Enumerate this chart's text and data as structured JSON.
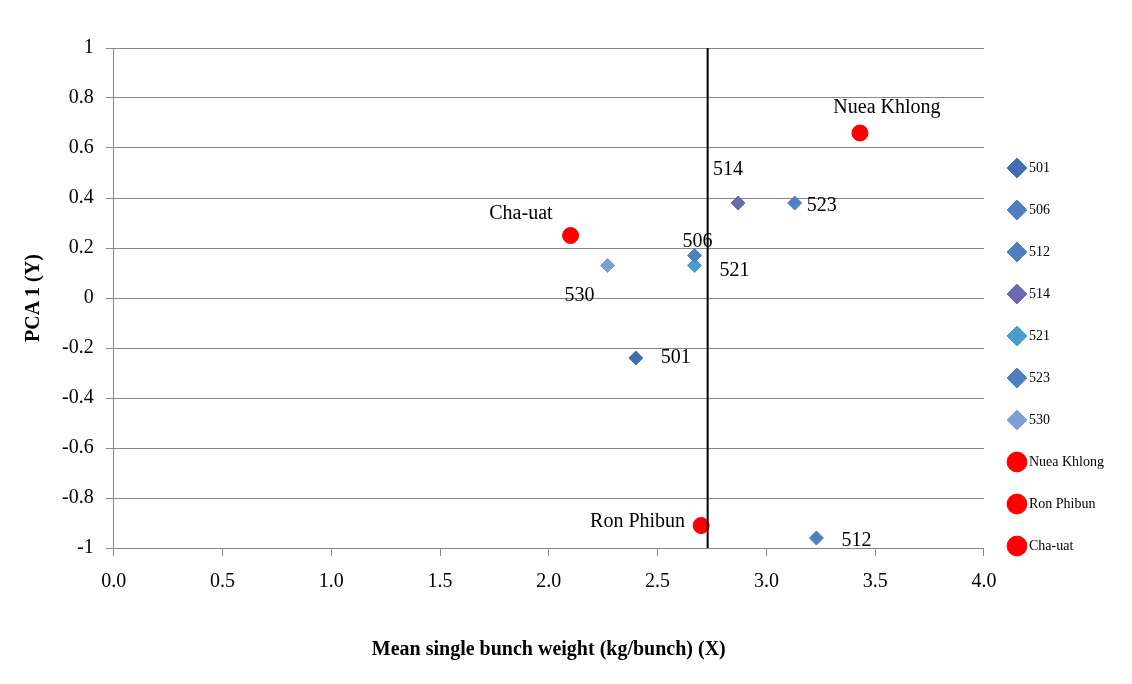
{
  "chart_data": {
    "type": "scatter",
    "xlabel": "Mean single bunch weight (kg/bunch) (X)",
    "ylabel": "PCA 1 (Y)",
    "xlim": [
      0,
      4
    ],
    "xticks": [
      {
        "value": 0,
        "label": "0.0"
      },
      {
        "value": 0.5,
        "label": "0.5"
      },
      {
        "value": 1,
        "label": "1.0"
      },
      {
        "value": 1.5,
        "label": "1.5"
      },
      {
        "value": 2,
        "label": "2.0"
      },
      {
        "value": 2.5,
        "label": "2.5"
      },
      {
        "value": 3,
        "label": "3.0"
      },
      {
        "value": 3.5,
        "label": "3.5"
      },
      {
        "value": 4,
        "label": "4.0"
      }
    ],
    "ylim": [
      -1,
      1
    ],
    "yticks": [
      -1,
      -0.8,
      -0.6,
      -0.4,
      -0.2,
      0,
      0.2,
      0.4,
      0.6,
      0.8,
      1
    ],
    "grid": "y",
    "legend": "right",
    "series": [
      {
        "name": "501",
        "color": "#3f6fb0",
        "marker": "diamond",
        "x": [
          2.4
        ],
        "values": [
          -0.24
        ]
      },
      {
        "name": "506",
        "color": "#4f7fc0",
        "marker": "diamond",
        "x": [
          2.67
        ],
        "values": [
          0.17
        ]
      },
      {
        "name": "512",
        "color": "#4f7fc0",
        "marker": "diamond",
        "x": [
          3.23
        ],
        "values": [
          -0.96
        ]
      },
      {
        "name": "514",
        "color": "#6a6ab0",
        "marker": "diamond",
        "x": [
          2.87
        ],
        "values": [
          0.38
        ]
      },
      {
        "name": "521",
        "color": "#4a9ccc",
        "marker": "diamond",
        "x": [
          2.67
        ],
        "values": [
          0.13
        ]
      },
      {
        "name": "523",
        "color": "#4f7fc0",
        "marker": "diamond",
        "x": [
          3.13
        ],
        "values": [
          0.38
        ]
      },
      {
        "name": "530",
        "color": "#7f9fd4",
        "marker": "diamond",
        "x": [
          2.27
        ],
        "values": [
          0.13
        ]
      },
      {
        "name": "Nuea Khlong",
        "color": "#ff0000",
        "marker": "circle",
        "x": [
          3.43
        ],
        "values": [
          0.66
        ]
      },
      {
        "name": "Ron Phibun",
        "color": "#ff0000",
        "marker": "circle",
        "x": [
          2.7
        ],
        "values": [
          -0.91
        ]
      },
      {
        "name": "Cha-uat",
        "color": "#ff0000",
        "marker": "circle",
        "x": [
          2.1
        ],
        "values": [
          0.25
        ]
      }
    ],
    "ref_lines": [
      {
        "axis": "x",
        "value": 2.73,
        "color": "#000000"
      }
    ],
    "annotations": [
      {
        "text": "501",
        "x": 2.4,
        "y": -0.24
      },
      {
        "text": "506",
        "x": 2.67,
        "y": 0.17
      },
      {
        "text": "512",
        "x": 3.23,
        "y": -0.96
      },
      {
        "text": "514",
        "x": 2.87,
        "y": 0.38
      },
      {
        "text": "521",
        "x": 2.67,
        "y": 0.13
      },
      {
        "text": "523",
        "x": 3.13,
        "y": 0.38
      },
      {
        "text": "530",
        "x": 2.27,
        "y": 0.13
      },
      {
        "text": "Nuea Khlong",
        "x": 3.43,
        "y": 0.66
      },
      {
        "text": "Ron Phibun",
        "x": 2.7,
        "y": -0.91
      },
      {
        "text": "Cha-uat",
        "x": 2.1,
        "y": 0.25
      }
    ]
  }
}
